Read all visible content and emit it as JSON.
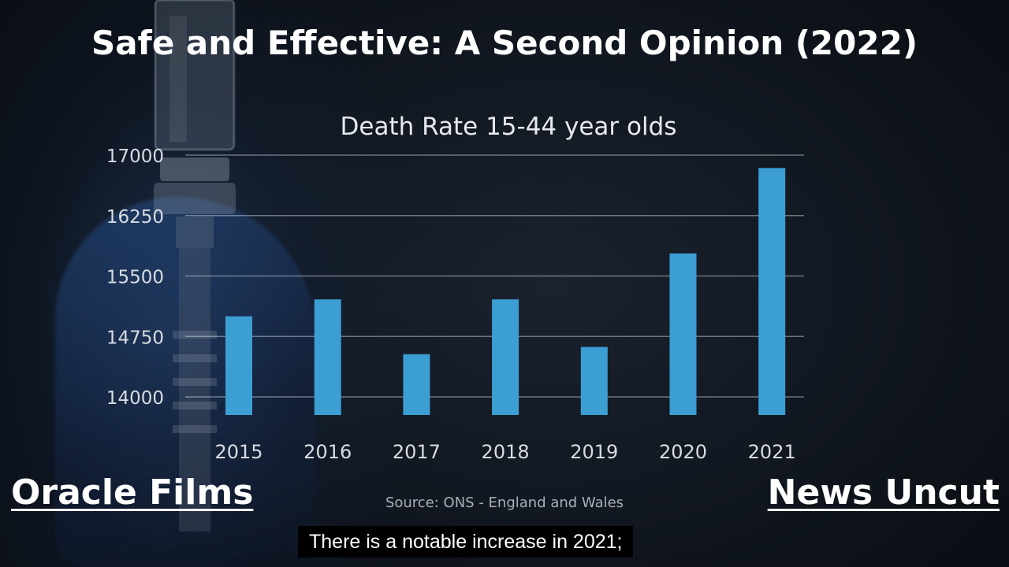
{
  "overlay": {
    "main_title": "Safe and Effective: A Second Opinion (2022)",
    "left_brand": "Oracle Films",
    "right_brand": "News Uncut",
    "caption": "There is a notable increase in 2021;"
  },
  "chart_data": {
    "type": "bar",
    "title": "Death Rate 15-44 year olds",
    "source": "Source: ONS - England and Wales",
    "categories": [
      "2015",
      "2016",
      "2017",
      "2018",
      "2019",
      "2020",
      "2021"
    ],
    "values": [
      15000,
      15210,
      14530,
      15210,
      14620,
      15780,
      16840
    ],
    "yticks": [
      "17000",
      "16250",
      "15500",
      "14750",
      "14000"
    ],
    "ylim": [
      13800,
      17000
    ],
    "grid": true,
    "bar_color": "#3b9fd4"
  }
}
